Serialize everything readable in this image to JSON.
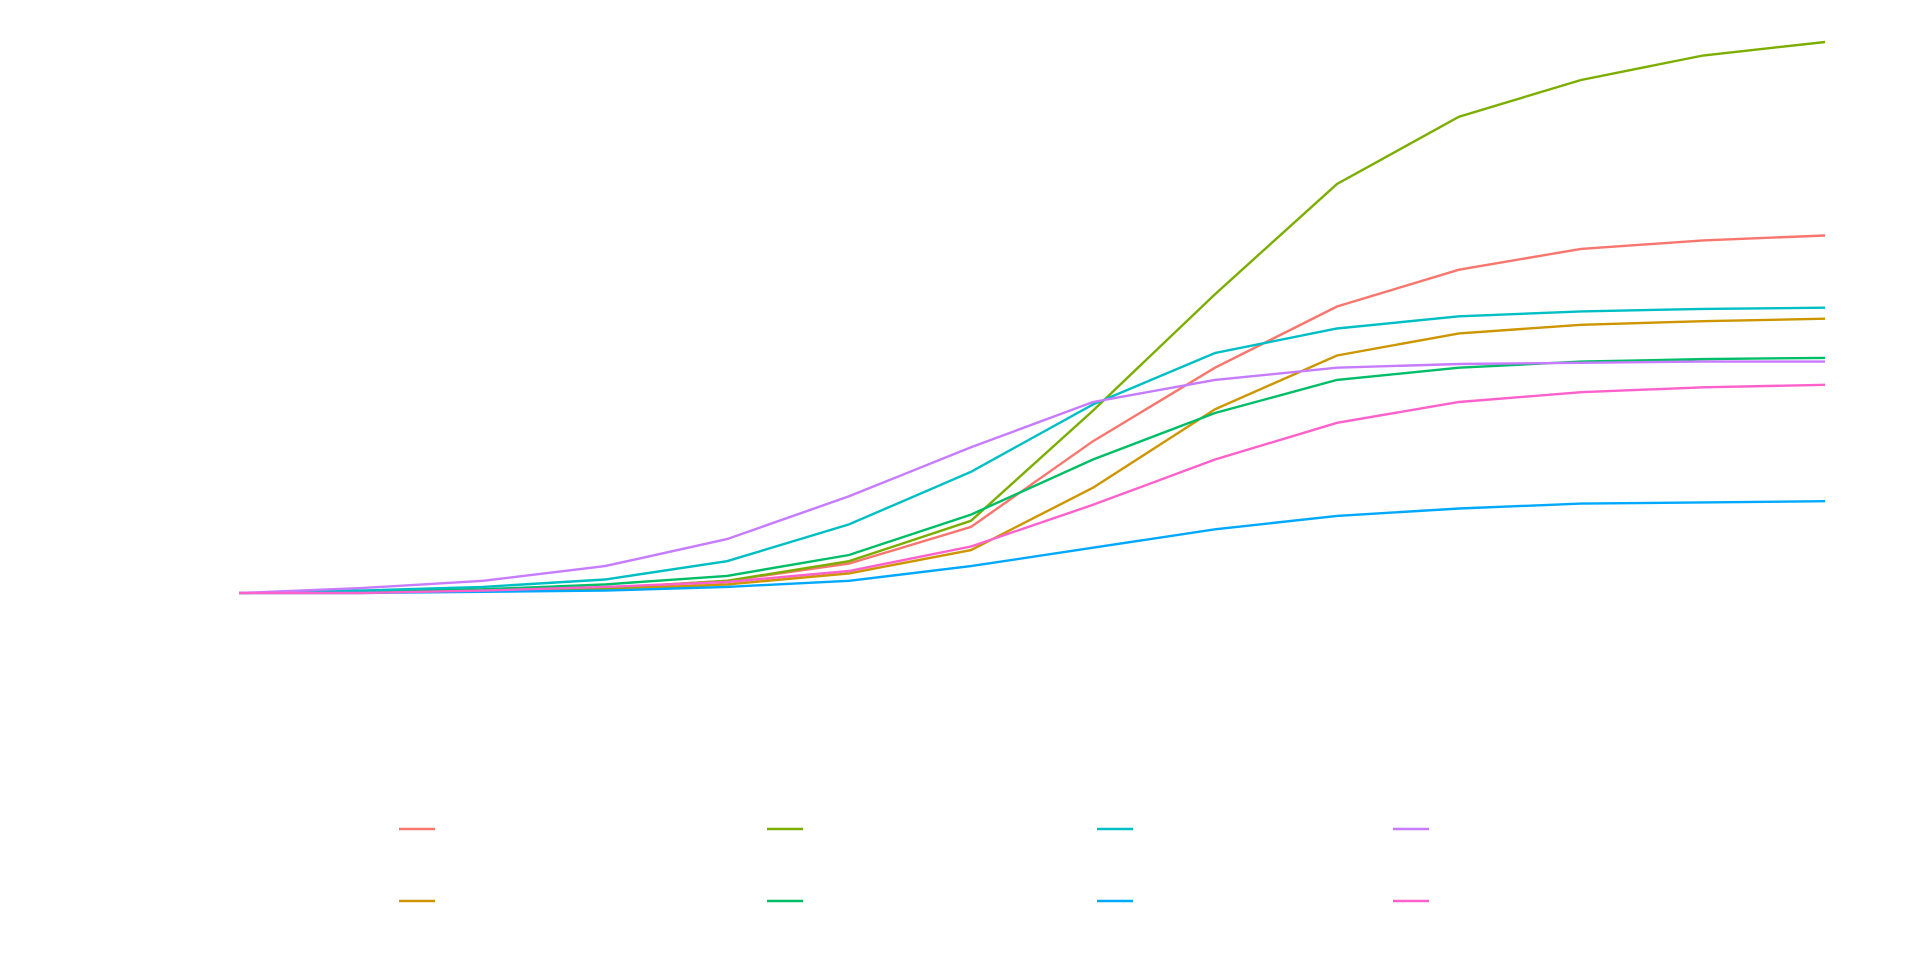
{
  "chart_data": {
    "type": "line",
    "x": [
      0,
      1,
      2,
      3,
      4,
      5,
      6,
      7,
      8,
      9,
      10,
      11,
      12,
      13
    ],
    "xlim": [
      0,
      13
    ],
    "ylim": [
      0,
      45
    ],
    "grid": false,
    "legend": "bottom",
    "series": [
      {
        "color": "#F8766D",
        "values": [
          0,
          0.1,
          0.2,
          0.4,
          1.0,
          2.4,
          5.4,
          12.4,
          18.4,
          23.4,
          26.4,
          28.1,
          28.8,
          29.2
        ]
      },
      {
        "color": "#CD9600",
        "values": [
          0,
          0.1,
          0.2,
          0.3,
          0.7,
          1.6,
          3.5,
          8.6,
          15.0,
          19.4,
          21.2,
          21.9,
          22.2,
          22.4
        ]
      },
      {
        "color": "#7CAE00",
        "values": [
          0,
          0.1,
          0.2,
          0.4,
          1.0,
          2.6,
          5.9,
          14.9,
          24.4,
          33.4,
          38.9,
          41.9,
          43.9,
          45
        ]
      },
      {
        "color": "#00BE67",
        "values": [
          0,
          0.1,
          0.3,
          0.7,
          1.4,
          3.1,
          6.4,
          10.9,
          14.7,
          17.4,
          18.4,
          18.9,
          19.1,
          19.2
        ]
      },
      {
        "color": "#00BFC4",
        "values": [
          0,
          0.2,
          0.5,
          1.1,
          2.6,
          5.6,
          9.9,
          15.4,
          19.6,
          21.6,
          22.6,
          23.0,
          23.2,
          23.3
        ]
      },
      {
        "color": "#00A9FF",
        "values": [
          0,
          0,
          0.1,
          0.2,
          0.5,
          1.0,
          2.2,
          3.7,
          5.2,
          6.3,
          6.9,
          7.3,
          7.4,
          7.5
        ]
      },
      {
        "color": "#C77CFF",
        "values": [
          0,
          0.4,
          1.0,
          2.2,
          4.4,
          7.9,
          11.9,
          15.6,
          17.4,
          18.4,
          18.7,
          18.8,
          18.9,
          18.9
        ]
      },
      {
        "color": "#FF61CC",
        "values": [
          0,
          0,
          0.2,
          0.5,
          0.9,
          1.8,
          3.8,
          7.2,
          10.9,
          13.9,
          15.6,
          16.4,
          16.8,
          17.0
        ]
      }
    ]
  }
}
